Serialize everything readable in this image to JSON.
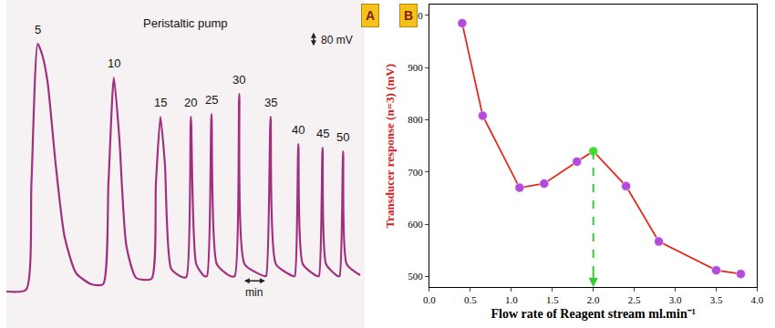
{
  "chart_data": [
    {
      "panel": "A",
      "type": "line",
      "title": "Peristaltic pump",
      "color": "#a0307f",
      "tick_labels": false,
      "grid": false,
      "xlim": [
        0,
        16
      ],
      "ylim": [
        -200,
        1600
      ],
      "x": [
        0,
        0.88,
        1.12,
        1.4,
        1.6,
        1.84,
        2.2,
        2.6,
        3.12,
        3.8,
        4.32,
        4.56,
        4.8,
        5.04,
        5.36,
        5.8,
        6.48,
        6.68,
        6.88,
        7.08,
        7.36,
        7.84,
        8.04,
        8.24,
        8.48,
        8.84,
        8.96,
        9.16,
        9.4,
        10,
        10.2,
        10.4,
        10.64,
        11.52,
        11.6,
        11.8,
        12.04,
        12.8,
        12.88,
        13.04,
        13.24,
        13.88,
        13.96,
        14.12,
        14.28,
        14.8,
        14.88,
        15.04,
        15.2,
        15.8
      ],
      "values": [
        0,
        10,
        600,
        1360,
        1300,
        1150,
        700,
        300,
        100,
        40,
        40,
        600,
        1175,
        850,
        250,
        75,
        70,
        600,
        960,
        700,
        125,
        80,
        80,
        960,
        150,
        85,
        85,
        975,
        150,
        85,
        85,
        1085,
        150,
        85,
        85,
        960,
        150,
        85,
        85,
        810,
        150,
        85,
        85,
        790,
        150,
        85,
        85,
        770,
        150,
        90
      ],
      "peaks": [
        {
          "label": 5,
          "x": 1.4,
          "y": 1360
        },
        {
          "label": 10,
          "x": 4.8,
          "y": 1175
        },
        {
          "label": 15,
          "x": 6.88,
          "y": 960
        },
        {
          "label": 20,
          "x": 8.24,
          "y": 960
        },
        {
          "label": 25,
          "x": 9.16,
          "y": 975
        },
        {
          "label": 30,
          "x": 10.4,
          "y": 1085
        },
        {
          "label": 35,
          "x": 11.8,
          "y": 960
        },
        {
          "label": 40,
          "x": 13.04,
          "y": 810
        },
        {
          "label": 45,
          "x": 14.12,
          "y": 790
        },
        {
          "label": 50,
          "x": 15.04,
          "y": 770
        }
      ],
      "scale_bars": [
        {
          "label": "80 mV",
          "value": 80,
          "axis": "y"
        },
        {
          "label": "min",
          "value": 1,
          "axis": "x"
        }
      ]
    },
    {
      "panel": "B",
      "type": "line",
      "color": "#e8281e",
      "marker": "circle",
      "xlabel": "Flow rate of Reagent stream ml.min⁻¹",
      "ylabel": "Transducer response (n=3) (mV)",
      "grid": false,
      "x": [
        0.4,
        0.65,
        1.1,
        1.4,
        1.8,
        2.0,
        2.4,
        2.8,
        3.5,
        3.8
      ],
      "values": [
        985,
        808,
        670,
        678,
        720,
        740,
        673,
        567,
        512,
        505
      ],
      "colors": [
        "#b44bdc",
        "#b44bdc",
        "#b44bdc",
        "#b44bdc",
        "#b44bdc",
        "#44dd33",
        "#b44bdc",
        "#b44bdc",
        "#b44bdc",
        "#b44bdc"
      ],
      "xlim": [
        0,
        4
      ],
      "xticks": [
        {
          "value": 0,
          "label": "0.0"
        },
        0.5,
        {
          "value": 1,
          "label": "1.0"
        },
        1.5,
        {
          "value": 2,
          "label": "2.0"
        },
        2.5,
        {
          "value": 3,
          "label": "3.0"
        },
        3.5,
        {
          "value": 4,
          "label": "4.0"
        }
      ],
      "ylim": [
        480,
        1020
      ],
      "yticks": [
        500,
        600,
        700,
        800,
        900,
        1000
      ],
      "optimum": {
        "x": 2.0,
        "y": 740,
        "color": "#33cc33",
        "line_style": "dashed"
      }
    }
  ]
}
